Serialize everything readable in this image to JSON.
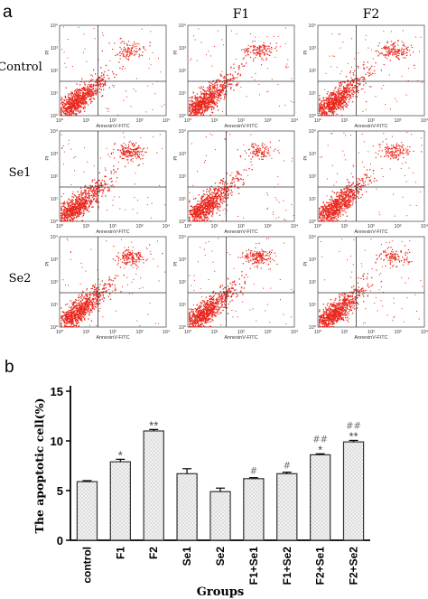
{
  "panel_a": {
    "label": "a",
    "column_headers": [
      "",
      "F1",
      "F2"
    ],
    "row_labels": [
      "Control",
      "Se1",
      "Se2"
    ],
    "plot_xlabel": "AnnexinV-FITC",
    "plot_ylabel": "PI",
    "x_tick_labels": [
      "10⁰",
      "10¹",
      "10²",
      "10³",
      "10⁴"
    ],
    "y_tick_labels": [
      "10⁰",
      "10¹",
      "10²",
      "10³",
      "10⁴"
    ],
    "dot_color": "#e8261c"
  },
  "panel_b": {
    "label": "b"
  },
  "chart_data": {
    "type": "bar",
    "title": "",
    "xlabel": "Groups",
    "ylabel": "The apoptotic cell(%)",
    "ylim": [
      0,
      15
    ],
    "y_ticks": [
      "0",
      "5",
      "10",
      "15"
    ],
    "categories": [
      "control",
      "F1",
      "F2",
      "Se1",
      "Se2",
      "F1+Se1",
      "F1+Se2",
      "F2+Se1",
      "F2+Se2"
    ],
    "values": [
      5.9,
      7.9,
      11.0,
      6.7,
      4.9,
      6.2,
      6.7,
      8.6,
      9.9
    ],
    "errors": [
      0.1,
      0.25,
      0.15,
      0.5,
      0.35,
      0.1,
      0.15,
      0.1,
      0.15
    ],
    "star_marks": [
      "",
      "*",
      "**",
      "",
      "",
      "",
      "",
      "*",
      "**"
    ],
    "hash_marks": [
      "",
      "",
      "",
      "",
      "",
      "#",
      "#",
      "##",
      "##"
    ],
    "bar_fill": "#f2f2f2",
    "bar_stroke": "#333333"
  }
}
